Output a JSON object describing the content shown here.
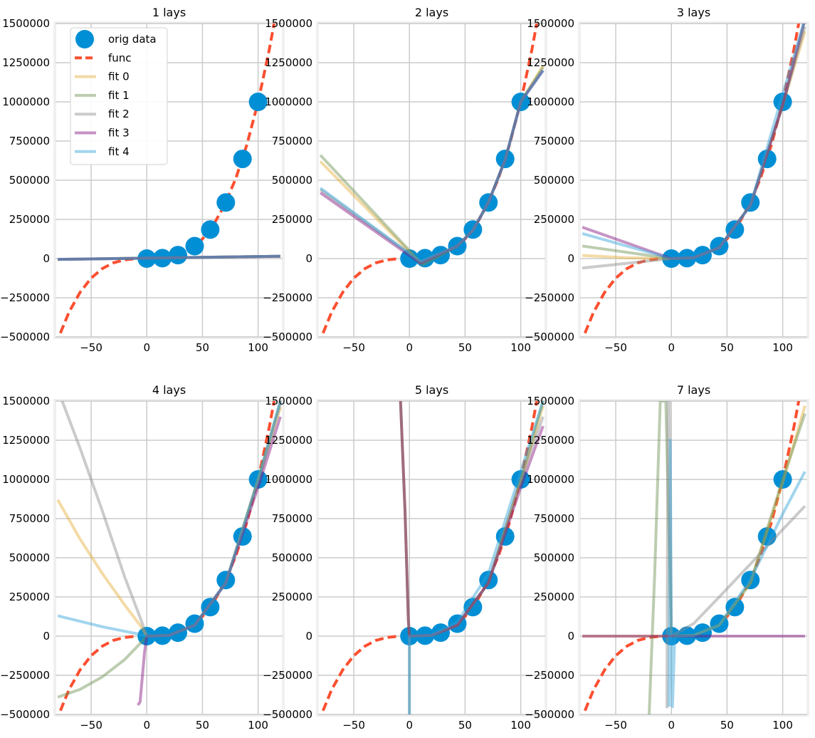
{
  "chart_data": {
    "type": "line",
    "function": "x^3",
    "grid": true,
    "xlim": [
      -82,
      122
    ],
    "ylim": [
      -500000,
      1500000
    ],
    "xticks": [
      -50,
      0,
      50,
      100
    ],
    "xtick_labels": [
      "−50",
      "0",
      "50",
      "100"
    ],
    "yticks": [
      -500000,
      -250000,
      0,
      250000,
      500000,
      750000,
      1000000,
      1250000,
      1500000
    ],
    "ytick_labels": [
      "−500000",
      "−250000",
      "0",
      "250000",
      "500000",
      "750000",
      "1000000",
      "1250000",
      "1500000"
    ],
    "legend": {
      "placement": "upper-left",
      "entries": [
        {
          "label": "orig data",
          "marker": "circle",
          "color": "#008fd5"
        },
        {
          "label": "func",
          "dash": true,
          "color": "#fc4f30"
        },
        {
          "label": "fit 0",
          "color": "#e5ae38"
        },
        {
          "label": "fit 1",
          "color": "#6d904f"
        },
        {
          "label": "fit 2",
          "color": "#8b8b8b"
        },
        {
          "label": "fit 3",
          "color": "#810f7c"
        },
        {
          "label": "fit 4",
          "color": "#30a2da"
        }
      ]
    },
    "orig_data": {
      "x": [
        0,
        14,
        28,
        43,
        57,
        71,
        86,
        100
      ],
      "y": [
        0,
        2744,
        21952,
        79507,
        185193,
        357911,
        636056,
        1000000
      ]
    },
    "func": {
      "x": [
        -82,
        -70,
        -60,
        -50,
        -40,
        -30,
        -20,
        -10,
        0,
        10,
        20,
        30,
        40,
        50,
        60,
        70,
        80,
        90,
        100,
        110,
        116,
        122
      ],
      "y": [
        -551368,
        -343000,
        -216000,
        -125000,
        -64000,
        -27000,
        -8000,
        -1000,
        0,
        1000,
        8000,
        27000,
        64000,
        125000,
        216000,
        343000,
        512000,
        729000,
        1000000,
        1331000,
        1560896,
        1815848
      ]
    },
    "panels": [
      {
        "title": "1 lays",
        "fits": [
          {
            "name": "fit 0",
            "x": [
              -80,
              120
            ],
            "y": [
              -5000,
              15000
            ]
          },
          {
            "name": "fit 1",
            "x": [
              -80,
              120
            ],
            "y": [
              -5000,
              15000
            ]
          },
          {
            "name": "fit 2",
            "x": [
              -80,
              120
            ],
            "y": [
              -5000,
              15000
            ]
          },
          {
            "name": "fit 3",
            "x": [
              -80,
              120
            ],
            "y": [
              -5000,
              15000
            ]
          },
          {
            "name": "fit 4",
            "x": [
              -80,
              120
            ],
            "y": [
              -5000,
              15000
            ]
          }
        ]
      },
      {
        "title": "2 lays",
        "fits": [
          {
            "name": "fit 0",
            "x": [
              -80,
              10,
              43,
              57,
              71,
              86,
              100,
              120
            ],
            "y": [
              620000,
              -30000,
              80000,
              180000,
              360000,
              630000,
              1000000,
              1230000
            ]
          },
          {
            "name": "fit 1",
            "x": [
              -80,
              12,
              43,
              57,
              71,
              86,
              100,
              120
            ],
            "y": [
              660000,
              -40000,
              80000,
              180000,
              360000,
              630000,
              1000000,
              1220000
            ]
          },
          {
            "name": "fit 2",
            "x": [
              -80,
              10,
              43,
              57,
              71,
              86,
              100,
              120
            ],
            "y": [
              440000,
              -20000,
              80000,
              180000,
              360000,
              630000,
              1000000,
              1200000
            ]
          },
          {
            "name": "fit 3",
            "x": [
              -80,
              10,
              43,
              57,
              71,
              86,
              100,
              120
            ],
            "y": [
              420000,
              -30000,
              80000,
              180000,
              360000,
              630000,
              1000000,
              1200000
            ]
          },
          {
            "name": "fit 4",
            "x": [
              -80,
              10,
              43,
              57,
              71,
              86,
              100,
              120
            ],
            "y": [
              450000,
              -20000,
              80000,
              180000,
              360000,
              630000,
              1000000,
              1200000
            ]
          }
        ]
      },
      {
        "title": "3 lays",
        "fits": [
          {
            "name": "fit 0",
            "x": [
              -80,
              -40,
              0,
              20,
              43,
              71,
              100,
              120
            ],
            "y": [
              20000,
              5000,
              0,
              5000,
              70000,
              340000,
              980000,
              1450000
            ]
          },
          {
            "name": "fit 1",
            "x": [
              -80,
              -40,
              0,
              20,
              43,
              71,
              100,
              120
            ],
            "y": [
              80000,
              40000,
              0,
              5000,
              70000,
              340000,
              980000,
              1520000
            ]
          },
          {
            "name": "fit 2",
            "x": [
              -80,
              -40,
              0,
              20,
              43,
              71,
              100,
              120
            ],
            "y": [
              -60000,
              -30000,
              0,
              5000,
              70000,
              340000,
              980000,
              1480000
            ]
          },
          {
            "name": "fit 3",
            "x": [
              -80,
              0,
              20,
              43,
              71,
              100,
              120
            ],
            "y": [
              200000,
              0,
              5000,
              70000,
              340000,
              980000,
              1530000
            ]
          },
          {
            "name": "fit 4",
            "x": [
              -80,
              0,
              20,
              43,
              71,
              100,
              120
            ],
            "y": [
              160000,
              0,
              5000,
              70000,
              340000,
              1050000,
              1530000
            ]
          }
        ]
      },
      {
        "title": "4 lays",
        "fits": [
          {
            "name": "fit 0",
            "x": [
              -80,
              -60,
              -40,
              -20,
              -5,
              0,
              20,
              43,
              71,
              100,
              120
            ],
            "y": [
              870000,
              620000,
              400000,
              200000,
              60000,
              0,
              5000,
              70000,
              340000,
              1000000,
              1460000
            ]
          },
          {
            "name": "fit 1",
            "x": [
              -80,
              -60,
              -40,
              -20,
              -5,
              0,
              20,
              43,
              71,
              100,
              120
            ],
            "y": [
              -390000,
              -340000,
              -260000,
              -150000,
              -40000,
              0,
              5000,
              70000,
              340000,
              1000000,
              1500000
            ]
          },
          {
            "name": "fit 2",
            "x": [
              -76,
              -60,
              -40,
              -20,
              -5,
              0,
              20,
              43,
              71,
              100,
              120
            ],
            "y": [
              1500000,
              1200000,
              800000,
              380000,
              100000,
              0,
              5000,
              70000,
              340000,
              980000,
              1480000
            ]
          },
          {
            "name": "fit 3",
            "x": [
              -8,
              -6,
              -2,
              0,
              20,
              43,
              71,
              100,
              120
            ],
            "y": [
              -440000,
              -420000,
              -100000,
              0,
              5000,
              70000,
              340000,
              950000,
              1400000
            ]
          },
          {
            "name": "fit 4",
            "x": [
              -80,
              -40,
              -5,
              0,
              20,
              43,
              71,
              100,
              120
            ],
            "y": [
              130000,
              60000,
              10000,
              0,
              5000,
              70000,
              340000,
              1000000,
              1500000
            ]
          }
        ]
      },
      {
        "title": "5 lays",
        "fits": [
          {
            "name": "fit 0",
            "x": [
              -8,
              -4,
              -1,
              0,
              20,
              43,
              71,
              100,
              120
            ],
            "y": [
              1500000,
              800000,
              100000,
              0,
              5000,
              70000,
              340000,
              980000,
              1470000
            ]
          },
          {
            "name": "fit 1",
            "x": [
              -8,
              -4,
              -1,
              0,
              20,
              43,
              71,
              100,
              120
            ],
            "y": [
              1500000,
              800000,
              100000,
              0,
              5000,
              70000,
              340000,
              1000000,
              1500000
            ]
          },
          {
            "name": "fit 2",
            "x": [
              0,
              0,
              20,
              43,
              71,
              100,
              120
            ],
            "y": [
              -500000,
              0,
              5000,
              70000,
              340000,
              1000000,
              1400000
            ]
          },
          {
            "name": "fit 3",
            "x": [
              -8,
              -4,
              -1,
              0,
              20,
              43,
              71,
              100,
              120
            ],
            "y": [
              1500000,
              800000,
              100000,
              0,
              5000,
              70000,
              340000,
              950000,
              1340000
            ]
          },
          {
            "name": "fit 4",
            "x": [
              0,
              0,
              20,
              43,
              71,
              100,
              120
            ],
            "y": [
              -500000,
              0,
              5000,
              90000,
              400000,
              1050000,
              1500000
            ]
          }
        ]
      },
      {
        "title": "7 lays",
        "fits": [
          {
            "name": "fit 0",
            "x": [
              -80,
              0,
              20,
              43,
              71,
              100,
              120
            ],
            "y": [
              0,
              0,
              5000,
              70000,
              340000,
              980000,
              1470000
            ]
          },
          {
            "name": "fit 1",
            "x": [
              -20,
              -15,
              -10,
              -5,
              0,
              20,
              43,
              71,
              100,
              120
            ],
            "y": [
              -500000,
              400000,
              1500000,
              1500000,
              0,
              5000,
              70000,
              340000,
              1000000,
              1420000
            ]
          },
          {
            "name": "fit 2",
            "x": [
              -4,
              -3,
              -2,
              0,
              20,
              43,
              71,
              100,
              120
            ],
            "y": [
              -460000,
              1500000,
              1500000,
              0,
              80000,
              250000,
              460000,
              680000,
              830000
            ]
          },
          {
            "name": "fit 3",
            "x": [
              -80,
              0,
              50,
              100,
              120
            ],
            "y": [
              0,
              0,
              0,
              0,
              0
            ]
          },
          {
            "name": "fit 4",
            "x": [
              -2,
              -1,
              0,
              1,
              3,
              20,
              43,
              71,
              100,
              120
            ],
            "y": [
              -450000,
              1250000,
              0,
              -450000,
              0,
              5000,
              70000,
              360000,
              780000,
              1050000
            ]
          }
        ]
      }
    ]
  }
}
